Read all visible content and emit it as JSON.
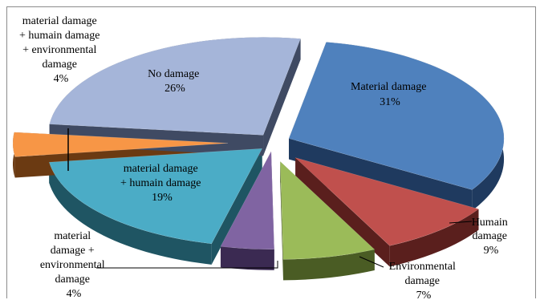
{
  "chart_data": {
    "type": "pie",
    "title": "",
    "style": "3d-exploded",
    "slices": [
      {
        "label_lines": [
          "Material damage",
          "31%"
        ],
        "value": 31,
        "top_color": "#4f81bd",
        "side_color": "#1f3a5f"
      },
      {
        "label_lines": [
          "Humain",
          "damage",
          "9%"
        ],
        "value": 9,
        "top_color": "#c0504d",
        "side_color": "#5a1f1d"
      },
      {
        "label_lines": [
          "Environmental",
          "damage",
          "7%"
        ],
        "value": 7,
        "top_color": "#9bbb59",
        "side_color": "#4a5c24"
      },
      {
        "label_lines": [
          "material",
          "damage +",
          "environmental",
          "damage",
          "4%"
        ],
        "value": 4,
        "top_color": "#8064a2",
        "side_color": "#3b2a52"
      },
      {
        "label_lines": [
          "material  damage",
          "+ humain  damage",
          "19%"
        ],
        "value": 19,
        "top_color": "#4bacc6",
        "side_color": "#1f5563"
      },
      {
        "label_lines": [
          "material  damage",
          "+ humain  damage",
          "+ environmental",
          "damage",
          "4%"
        ],
        "value": 4,
        "top_color": "#f79646",
        "side_color": "#6b3a12"
      },
      {
        "label_lines": [
          "No damage",
          "26%"
        ],
        "value": 26,
        "top_color": "#a5b5d9",
        "side_color": "#3f4a63"
      }
    ]
  }
}
